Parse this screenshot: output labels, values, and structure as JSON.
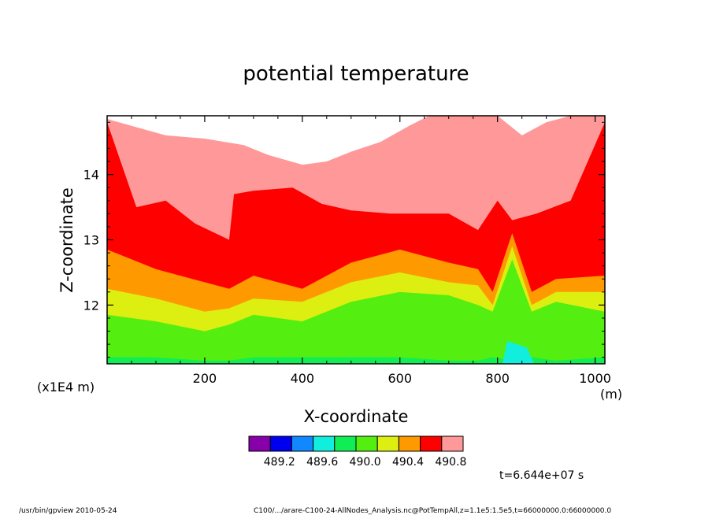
{
  "chart_data": {
    "type": "heatmap",
    "title": "potential temperature",
    "xlabel": "X-coordinate",
    "ylabel": "Z-coordinate",
    "x_unit": "(m)",
    "y_unit": "(x1E4 m)",
    "xlim": [
      0,
      1020
    ],
    "ylim": [
      11.1,
      14.9
    ],
    "x_ticks": [
      200,
      400,
      600,
      800,
      1000
    ],
    "x_tick_labels": [
      "200",
      "400",
      "600",
      "800",
      "1000"
    ],
    "y_ticks": [
      12,
      13,
      14
    ],
    "y_tick_labels": [
      "12",
      "13",
      "14"
    ],
    "levels": [
      489.2,
      489.6,
      490.0,
      490.4,
      490.8
    ],
    "colorbar_labels": [
      "489.2",
      "489.6",
      "490.0",
      "490.4",
      "490.8"
    ],
    "colors": [
      "#8800aa",
      "#0000ee",
      "#1188ff",
      "#11eedd",
      "#11ee55",
      "#55ee11",
      "#ddee11",
      "#ff9900",
      "#ff0000",
      "#ff9999"
    ],
    "band_tops": [
      {
        "x": [
          0,
          100,
          200,
          250,
          300,
          400,
          500,
          600,
          700,
          760,
          790,
          830,
          870,
          920,
          1020
        ],
        "z": [
          11.2,
          11.2,
          11.15,
          11.15,
          11.2,
          11.2,
          11.2,
          11.2,
          11.15,
          11.15,
          11.2,
          11.15,
          11.2,
          11.15,
          11.2
        ]
      },
      {
        "x": [
          0,
          100,
          200,
          250,
          300,
          400,
          500,
          600,
          700,
          760,
          790,
          830,
          870,
          920,
          1020
        ],
        "z": [
          11.85,
          11.75,
          11.6,
          11.7,
          11.85,
          11.75,
          12.05,
          12.2,
          12.15,
          12.0,
          11.9,
          12.7,
          11.9,
          12.05,
          11.9
        ]
      },
      {
        "x": [
          0,
          100,
          200,
          250,
          300,
          400,
          500,
          600,
          700,
          760,
          790,
          830,
          870,
          920,
          1020
        ],
        "z": [
          12.25,
          12.1,
          11.9,
          11.95,
          12.1,
          12.05,
          12.35,
          12.5,
          12.35,
          12.3,
          12.0,
          12.9,
          12.0,
          12.2,
          12.2
        ]
      },
      {
        "x": [
          0,
          100,
          200,
          250,
          300,
          400,
          500,
          600,
          700,
          760,
          790,
          830,
          870,
          920,
          1020
        ],
        "z": [
          12.85,
          12.55,
          12.35,
          12.25,
          12.45,
          12.25,
          12.65,
          12.85,
          12.65,
          12.55,
          12.2,
          13.1,
          12.2,
          12.4,
          12.45
        ]
      },
      {
        "x": [
          0,
          60,
          120,
          180,
          250,
          260,
          300,
          380,
          440,
          500,
          580,
          700,
          760,
          800,
          830,
          880,
          950,
          1020
        ],
        "z": [
          14.8,
          13.5,
          13.6,
          13.25,
          13.0,
          13.7,
          13.75,
          13.8,
          13.55,
          13.45,
          13.4,
          13.4,
          13.15,
          13.6,
          13.3,
          13.4,
          13.6,
          14.8
        ]
      },
      {
        "x": [
          0,
          120,
          200,
          280,
          330,
          400,
          450,
          500,
          560,
          620,
          660,
          700,
          750,
          800,
          850,
          900,
          950,
          1020
        ],
        "z": [
          14.85,
          14.6,
          14.55,
          14.45,
          14.3,
          14.15,
          14.2,
          14.35,
          14.5,
          14.75,
          14.9,
          14.9,
          14.9,
          14.9,
          14.6,
          14.8,
          14.9,
          14.9
        ]
      }
    ]
  },
  "time_label": "t=6.644e+07 s",
  "footer": {
    "left": "/usr/bin/gpview   2010-05-24",
    "right": "C100/.../arare-C100-24-AllNodes_Analysis.nc@PotTempAll,z=1.1e5:1.5e5,t=66000000.0:66000000.0"
  }
}
